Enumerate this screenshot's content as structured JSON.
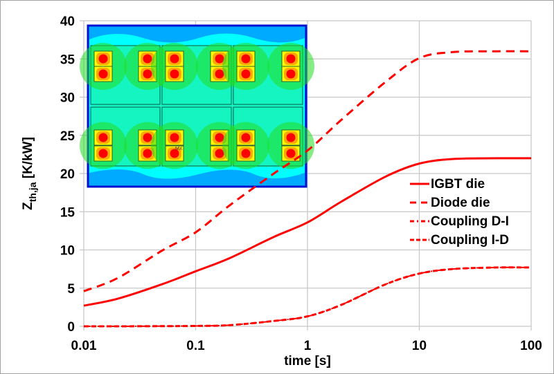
{
  "chart_data": {
    "type": "line",
    "title": "",
    "xlabel": "time [s]",
    "ylabel_main": "Z",
    "ylabel_sub": "th,ja",
    "ylabel_unit": " [K/kW]",
    "xscale": "log",
    "xlim": [
      0.01,
      100
    ],
    "ylim": [
      0,
      40
    ],
    "xticks": [
      "0.01",
      "0.1",
      "1",
      "10",
      "100"
    ],
    "yticks": [
      "0",
      "5",
      "10",
      "15",
      "20",
      "25",
      "30",
      "35",
      "40"
    ],
    "grid": true,
    "legend_placement": "right",
    "line_color": "#ff0000",
    "x": [
      0.01,
      0.02,
      0.05,
      0.1,
      0.2,
      0.5,
      1,
      2,
      5,
      10,
      20,
      50,
      100
    ],
    "series": [
      {
        "name": "IGBT die",
        "style": "solid",
        "values": [
          2.7,
          3.6,
          5.5,
          7.2,
          8.9,
          11.7,
          13.6,
          16.3,
          19.6,
          21.3,
          21.9,
          22.0,
          22.0
        ]
      },
      {
        "name": "Diode die",
        "style": "dashed",
        "values": [
          4.6,
          6.3,
          9.9,
          12.3,
          15.8,
          20.0,
          23.0,
          27.0,
          32.0,
          35.1,
          35.9,
          36.0,
          36.0
        ]
      },
      {
        "name": "Coupling D-I",
        "style": "dash-dot",
        "values": [
          0.0,
          0.0,
          0.02,
          0.05,
          0.15,
          0.7,
          1.3,
          2.8,
          5.5,
          6.9,
          7.5,
          7.7,
          7.7
        ]
      },
      {
        "name": "Coupling I-D",
        "style": "short-dash",
        "values": [
          0.0,
          0.0,
          0.02,
          0.05,
          0.15,
          0.7,
          1.3,
          2.8,
          5.5,
          6.9,
          7.5,
          7.7,
          7.7
        ]
      }
    ],
    "inset": {
      "description_label": "MX",
      "annotation_marks": [
        "MX",
        "X"
      ]
    }
  }
}
